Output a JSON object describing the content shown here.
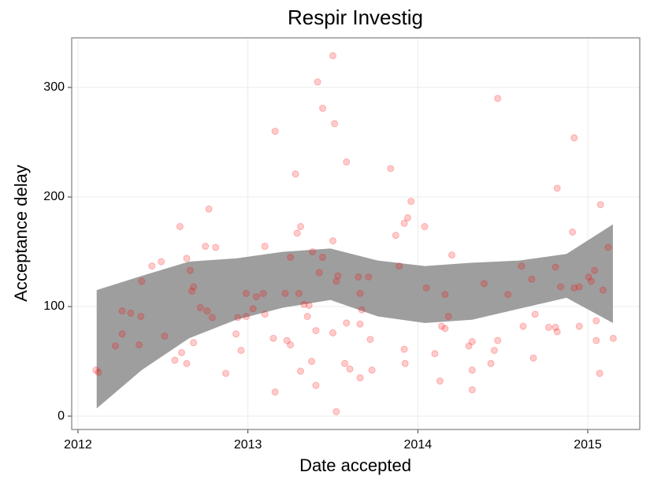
{
  "chart_data": {
    "type": "scatter",
    "title": "Respir Investig",
    "x_label": "Date accepted",
    "y_label": "Acceptance delay",
    "xlim": [
      2011.963,
      2015.306
    ],
    "ylim": [
      -12.2,
      345.3
    ],
    "xticks": [
      2012,
      2013,
      2014,
      2015
    ],
    "yticks": [
      0,
      100,
      200,
      300
    ],
    "grid": true,
    "color": "#ff0000",
    "x": [
      2012.106,
      2012.12,
      2012.22,
      2012.26,
      2012.26,
      2012.31,
      2012.36,
      2012.37,
      2012.375,
      2012.435,
      2012.49,
      2012.51,
      2012.57,
      2012.6,
      2012.61,
      2012.64,
      2012.64,
      2012.66,
      2012.67,
      2012.68,
      2012.68,
      2012.72,
      2012.75,
      2012.76,
      2012.77,
      2012.79,
      2012.81,
      2012.87,
      2012.93,
      2012.94,
      2012.96,
      2012.99,
      2012.99,
      2013.03,
      2013.05,
      2013.09,
      2013.1,
      2013.1,
      2013.15,
      2013.16,
      2013.16,
      2013.22,
      2013.23,
      2013.25,
      2013.25,
      2013.28,
      2013.29,
      2013.3,
      2013.31,
      2013.31,
      2013.33,
      2013.35,
      2013.36,
      2013.375,
      2013.38,
      2013.4,
      2013.4,
      2013.41,
      2013.42,
      2013.44,
      2013.44,
      2013.5,
      2013.5,
      2013.5,
      2013.51,
      2013.52,
      2013.52,
      2013.53,
      2013.57,
      2013.58,
      2013.58,
      2013.6,
      2013.65,
      2013.66,
      2013.66,
      2013.66,
      2013.67,
      2013.71,
      2013.72,
      2013.73,
      2013.84,
      2013.87,
      2013.89,
      2013.92,
      2013.92,
      2013.925,
      2013.94,
      2013.96,
      2014.04,
      2014.05,
      2014.1,
      2014.13,
      2014.14,
      2014.16,
      2014.16,
      2014.18,
      2014.2,
      2014.3,
      2014.32,
      2014.32,
      2014.32,
      2014.39,
      2014.43,
      2014.45,
      2014.47,
      2014.47,
      2014.53,
      2014.61,
      2014.62,
      2014.67,
      2014.68,
      2014.69,
      2014.77,
      2014.81,
      2014.81,
      2014.82,
      2014.82,
      2014.84,
      2014.91,
      2014.92,
      2014.92,
      2014.95,
      2014.95,
      2015.005,
      2015.02,
      2015.04,
      2015.05,
      2015.05,
      2015.07,
      2015.075,
      2015.09,
      2015.12,
      2015.15
    ],
    "values": [
      42,
      40,
      64,
      96,
      75,
      94,
      65,
      91,
      123,
      137,
      141,
      73,
      51,
      173,
      58,
      144,
      48,
      133,
      114,
      118,
      67,
      99,
      155,
      96,
      189,
      90,
      154,
      39,
      75,
      90,
      60,
      91,
      112,
      98,
      109,
      112,
      93,
      155,
      71,
      260,
      22,
      112,
      69,
      145,
      65,
      221,
      167,
      112,
      173,
      41,
      102,
      91,
      101,
      50,
      150,
      28,
      78,
      305,
      131,
      145,
      281,
      76,
      160,
      329,
      267,
      123,
      4,
      128,
      48,
      85,
      232,
      43,
      127,
      84,
      112,
      35,
      97,
      127,
      70,
      42,
      226,
      165,
      137,
      176,
      61,
      48,
      181,
      196,
      173,
      117,
      57,
      32,
      82,
      111,
      80,
      91,
      147,
      64,
      68,
      24,
      42,
      121,
      48,
      60,
      290,
      69,
      111,
      137,
      82,
      125,
      53,
      93,
      81,
      81,
      136,
      208,
      77,
      118,
      168,
      254,
      117,
      118,
      82,
      127,
      123,
      133,
      87,
      69,
      39,
      193,
      115,
      154,
      71
    ],
    "ribbon": {
      "color": "#999999",
      "x": [
        2012.11,
        2012.375,
        2012.653,
        2012.931,
        2013.208,
        2013.486,
        2013.764,
        2014.042,
        2014.319,
        2014.597,
        2014.875,
        2015.148
      ],
      "upper": [
        115,
        128,
        141,
        144,
        150,
        153,
        142,
        137,
        140,
        142,
        148,
        175
      ],
      "lower": [
        7,
        42,
        71,
        88,
        99,
        106,
        91,
        85,
        88,
        98,
        108,
        85
      ]
    }
  }
}
